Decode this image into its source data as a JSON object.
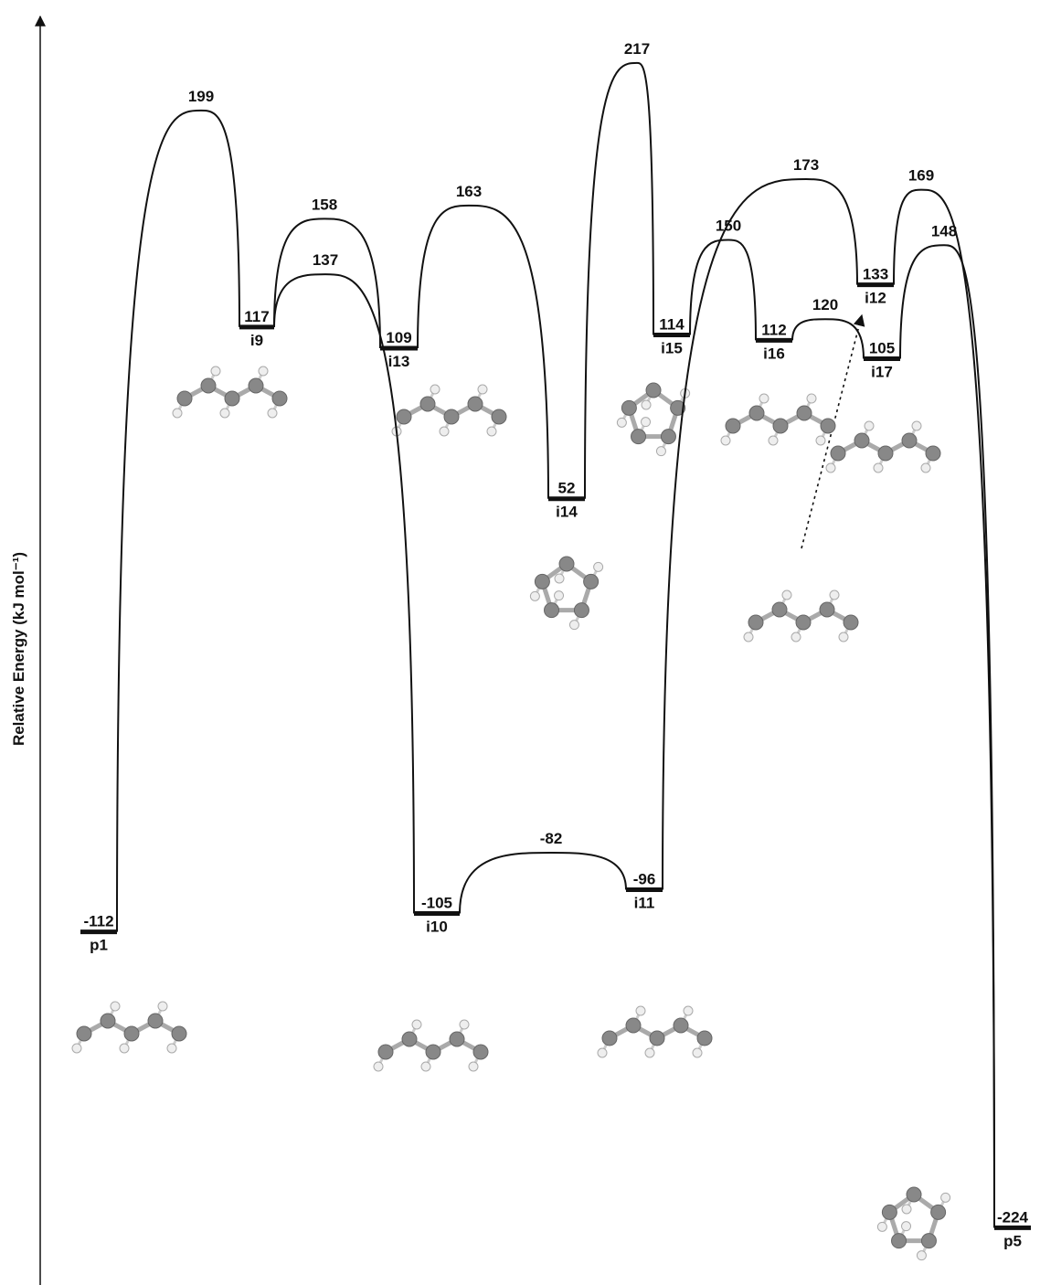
{
  "axis_label": "Relative Energy (kJ mol⁻¹)",
  "minima": [
    {
      "label": "p1",
      "energy": -112
    },
    {
      "label": "i9",
      "energy": 117
    },
    {
      "label": "i13",
      "energy": 109
    },
    {
      "label": "i10",
      "energy": -105
    },
    {
      "label": "i11",
      "energy": -96
    },
    {
      "label": "i14",
      "energy": 52
    },
    {
      "label": "i15",
      "energy": 114
    },
    {
      "label": "i16",
      "energy": 112
    },
    {
      "label": "i12",
      "energy": 133
    },
    {
      "label": "i17",
      "energy": 105
    },
    {
      "label": "p5",
      "energy": -224
    }
  ],
  "transition_states": [
    199,
    158,
    137,
    163,
    -82,
    217,
    150,
    173,
    120,
    169,
    148
  ]
}
